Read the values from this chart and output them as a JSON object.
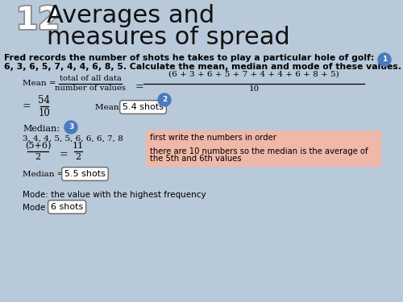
{
  "bg_color": "#b8c9d9",
  "title_number": "12",
  "title_line1": "Averages and",
  "title_line2": "measures of spread",
  "problem_line1": "Fred records the number of shots he takes to play a particular hole of golf:",
  "problem_line2": "6, 3, 6, 5, 7, 4, 4, 6, 8, 5. Calculate the mean, median and mode of these values.",
  "mean_frac_top": "total of all data",
  "mean_frac_bot": "number of values",
  "mean_num_text": "(6 + 3 + 6 + 5 + 7 + 4 + 4 + 6 + 8 + 5)",
  "mean_den_text": "10",
  "mean_result_top": "54",
  "mean_result_bot": "10",
  "mean_box_text": "5.4 shots",
  "median_ordered": "3, 4, 4, 5, 5, 6, 6, 6, 7, 8",
  "median_note1": "first write the numbers in order",
  "median_frac_num": "(5+6)",
  "median_frac_den": "2",
  "median_frac2_num": "11",
  "median_frac2_den": "2",
  "median_note2_l1": "there are 10 numbers so the median is the average of",
  "median_note2_l2": "the 5th and 6th values",
  "median_box_text": "5.5 shots",
  "mode_line": "Mode: the value with the highest frequency",
  "mode_box_text": "6 shots",
  "note_bg": "#f0b8a8",
  "box_fc": "#ffffff",
  "box_ec": "#666666",
  "bubble_color": "#4a7abf",
  "bubble_tc": "#ffffff",
  "text_color": "#000000",
  "title_color": "#111111"
}
